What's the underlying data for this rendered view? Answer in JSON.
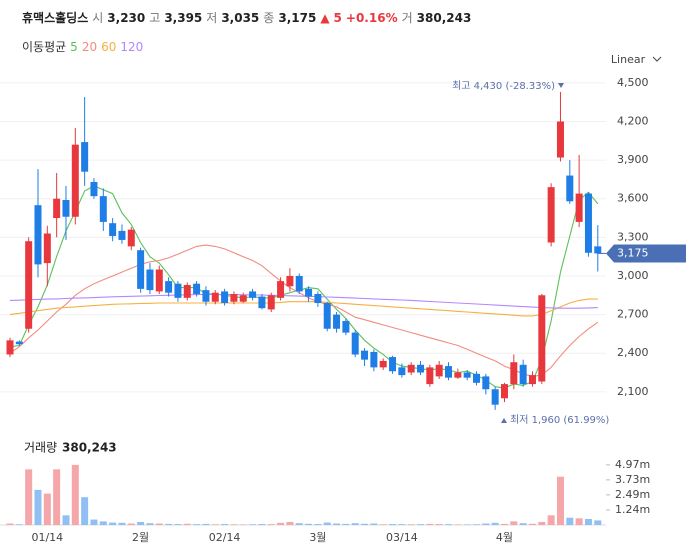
{
  "header": {
    "title": "휴맥스홀딩스",
    "fields": [
      {
        "label": "시",
        "value": "3,230"
      },
      {
        "label": "고",
        "value": "3,395"
      },
      {
        "label": "저",
        "value": "3,035"
      },
      {
        "label": "종",
        "value": "3,175"
      }
    ],
    "change": {
      "arrow": "▲",
      "amount": "5",
      "percent": "+0.16%"
    },
    "volume": {
      "label": "거",
      "value": "380,243"
    }
  },
  "chart_data": {
    "type": "candlestick",
    "scale_label": "Linear",
    "ma_label": "이동평균",
    "categories": [
      null,
      null,
      null,
      null,
      "01/14",
      null,
      null,
      null,
      null,
      null,
      null,
      null,
      null,
      null,
      "2월",
      null,
      null,
      null,
      null,
      null,
      null,
      null,
      null,
      "02/14",
      null,
      null,
      null,
      null,
      null,
      null,
      null,
      null,
      null,
      "3월",
      null,
      null,
      null,
      null,
      null,
      null,
      null,
      null,
      "03/14",
      null,
      null,
      null,
      null,
      null,
      null,
      null,
      null,
      null,
      null,
      "4월",
      null,
      null,
      null,
      null,
      null,
      null,
      null,
      null,
      null,
      null
    ],
    "open": [
      2390,
      2490,
      2590,
      3550,
      3100,
      3450,
      3590,
      3460,
      4040,
      3730,
      3620,
      3410,
      3350,
      3230,
      3200,
      3050,
      2880,
      2960,
      2940,
      2830,
      2940,
      2890,
      2800,
      2880,
      2800,
      2800,
      2880,
      2840,
      2740,
      2830,
      2920,
      3000,
      2900,
      2860,
      2790,
      2700,
      2650,
      2560,
      2420,
      2410,
      2290,
      2370,
      2290,
      2250,
      2310,
      2160,
      2220,
      2300,
      2210,
      2250,
      2240,
      2220,
      2120,
      2050,
      2160,
      2310,
      2160,
      2180,
      3260,
      3920,
      3780,
      3420,
      3640,
      3230
    ],
    "high": [
      2520,
      2500,
      3300,
      3830,
      3390,
      3800,
      3700,
      4150,
      4390,
      3760,
      3680,
      3450,
      3400,
      3380,
      3220,
      3100,
      3080,
      2990,
      2960,
      2950,
      2960,
      2920,
      2890,
      2900,
      2880,
      2870,
      2900,
      2860,
      2870,
      2990,
      3060,
      3020,
      2920,
      2880,
      2800,
      2720,
      2670,
      2580,
      2440,
      2430,
      2360,
      2380,
      2320,
      2330,
      2340,
      2310,
      2340,
      2330,
      2280,
      2270,
      2260,
      2240,
      2140,
      2170,
      2390,
      2350,
      2260,
      2860,
      3720,
      4430,
      3900,
      3940,
      3650,
      3395
    ],
    "low": [
      2370,
      2460,
      2560,
      2990,
      2920,
      3300,
      3280,
      3400,
      3700,
      3600,
      3350,
      3270,
      3250,
      3200,
      2870,
      2860,
      2860,
      2840,
      2800,
      2810,
      2840,
      2770,
      2780,
      2770,
      2780,
      2790,
      2810,
      2740,
      2720,
      2810,
      2880,
      2860,
      2800,
      2760,
      2570,
      2560,
      2540,
      2370,
      2300,
      2260,
      2270,
      2240,
      2210,
      2230,
      2230,
      2140,
      2200,
      2190,
      2200,
      2190,
      2150,
      2080,
      1960,
      2020,
      2120,
      2140,
      2140,
      2160,
      3230,
      3890,
      3560,
      3380,
      3150,
      3035
    ],
    "close": [
      2500,
      2470,
      3270,
      3090,
      3330,
      3600,
      3460,
      4020,
      3810,
      3620,
      3420,
      3310,
      3280,
      3360,
      2900,
      2890,
      3050,
      2870,
      2830,
      2930,
      2860,
      2800,
      2870,
      2790,
      2860,
      2850,
      2830,
      2750,
      2850,
      2960,
      3000,
      2880,
      2840,
      2790,
      2590,
      2590,
      2560,
      2390,
      2350,
      2290,
      2340,
      2260,
      2230,
      2310,
      2250,
      2290,
      2310,
      2210,
      2250,
      2210,
      2170,
      2120,
      2000,
      2160,
      2330,
      2160,
      2230,
      2850,
      3690,
      4200,
      3580,
      3640,
      3180,
      3175
    ],
    "volume": [
      120000,
      60000,
      4600000,
      2900000,
      2600000,
      4600000,
      800000,
      4970000,
      2300000,
      450000,
      300000,
      200000,
      180000,
      120000,
      250000,
      150000,
      120000,
      90000,
      80000,
      100000,
      70000,
      90000,
      60000,
      80000,
      60000,
      50000,
      60000,
      80000,
      70000,
      180000,
      250000,
      150000,
      100000,
      80000,
      200000,
      120000,
      90000,
      150000,
      100000,
      120000,
      60000,
      80000,
      70000,
      60000,
      70000,
      90000,
      80000,
      70000,
      50000,
      50000,
      60000,
      120000,
      180000,
      90000,
      300000,
      150000,
      100000,
      250000,
      800000,
      3990000,
      600000,
      550000,
      500000,
      380243
    ],
    "up_color": "#e8383d",
    "down_color": "#1e7ee6",
    "volume_up_color": "#f4a6a8",
    "volume_down_color": "#90c0f3",
    "moving_averages": [
      {
        "name": "5",
        "color": "#5cc15c",
        "values": [
          2450,
          2460,
          2620,
          2760,
          2930,
          3150,
          3350,
          3500,
          3660,
          3700,
          3670,
          3640,
          3490,
          3400,
          3260,
          3150,
          3100,
          3010,
          2910,
          2910,
          2910,
          2860,
          2860,
          2850,
          2840,
          2830,
          2840,
          2830,
          2830,
          2850,
          2870,
          2890,
          2910,
          2900,
          2820,
          2740,
          2670,
          2580,
          2500,
          2440,
          2390,
          2330,
          2300,
          2290,
          2280,
          2270,
          2280,
          2270,
          2250,
          2260,
          2230,
          2190,
          2140,
          2130,
          2160,
          2150,
          2180,
          2350,
          2650,
          3030,
          3310,
          3590,
          3650,
          3560
        ]
      },
      {
        "name": "20",
        "color": "#f28b82",
        "values": [
          2400,
          2450,
          2520,
          2580,
          2650,
          2720,
          2780,
          2850,
          2900,
          2940,
          2970,
          3000,
          3030,
          3060,
          3090,
          3110,
          3120,
          3140,
          3170,
          3200,
          3230,
          3240,
          3230,
          3210,
          3180,
          3150,
          3120,
          3080,
          3020,
          2960,
          2910,
          2870,
          2830,
          2800,
          2780,
          2760,
          2720,
          2680,
          2660,
          2640,
          2620,
          2600,
          2580,
          2560,
          2540,
          2520,
          2500,
          2480,
          2460,
          2430,
          2400,
          2370,
          2340,
          2300,
          2270,
          2240,
          2220,
          2230,
          2290,
          2380,
          2460,
          2530,
          2590,
          2640
        ]
      },
      {
        "name": "60",
        "color": "#f5b041",
        "values": [
          2700,
          2710,
          2720,
          2730,
          2740,
          2750,
          2755,
          2760,
          2765,
          2770,
          2775,
          2780,
          2782,
          2784,
          2786,
          2788,
          2790,
          2790,
          2790,
          2790,
          2790,
          2790,
          2790,
          2790,
          2790,
          2790,
          2790,
          2790,
          2790,
          2795,
          2800,
          2800,
          2800,
          2800,
          2795,
          2790,
          2785,
          2780,
          2775,
          2770,
          2765,
          2760,
          2755,
          2750,
          2745,
          2740,
          2735,
          2730,
          2725,
          2720,
          2715,
          2710,
          2705,
          2700,
          2695,
          2690,
          2690,
          2700,
          2730,
          2760,
          2790,
          2810,
          2820,
          2820
        ]
      },
      {
        "name": "120",
        "color": "#b388ff",
        "values": [
          2810,
          2812,
          2815,
          2818,
          2820,
          2822,
          2825,
          2828,
          2830,
          2832,
          2835,
          2838,
          2840,
          2842,
          2844,
          2846,
          2848,
          2850,
          2852,
          2854,
          2855,
          2856,
          2856,
          2856,
          2855,
          2854,
          2853,
          2852,
          2850,
          2848,
          2846,
          2844,
          2842,
          2840,
          2837,
          2834,
          2831,
          2828,
          2825,
          2822,
          2819,
          2816,
          2813,
          2810,
          2806,
          2802,
          2798,
          2794,
          2790,
          2786,
          2782,
          2778,
          2774,
          2770,
          2766,
          2762,
          2758,
          2755,
          2752,
          2750,
          2750,
          2750,
          2752,
          2754
        ]
      }
    ],
    "ylim": [
      1920,
      4600
    ],
    "yticks": [
      {
        "value": 2100,
        "label": "2,100"
      },
      {
        "value": 2400,
        "label": "2,400"
      },
      {
        "value": 2700,
        "label": "2,700"
      },
      {
        "value": 3000,
        "label": "3,000"
      },
      {
        "value": 3300,
        "label": "3,300"
      },
      {
        "value": 3600,
        "label": "3,600"
      },
      {
        "value": 3900,
        "label": "3,900"
      },
      {
        "value": 4200,
        "label": "4,200"
      },
      {
        "value": 4500,
        "label": "4,500"
      }
    ],
    "grid": true,
    "current_price": {
      "value": 3175,
      "label": "3,175"
    },
    "high_annotation": "최고 4,430 (-28.33%)",
    "low_annotation": "최저 1,960 (61.99%)",
    "volume_caption": "거래량",
    "volume_caption_value": "380,243",
    "volume_ylim": [
      0,
      7440000
    ],
    "volume_ticks": [
      {
        "value": 1240000,
        "label": "1.24m"
      },
      {
        "value": 2490000,
        "label": "2.49m"
      },
      {
        "value": 3730000,
        "label": "3.73m"
      },
      {
        "value": 4970000,
        "label": "4.97m"
      }
    ]
  }
}
